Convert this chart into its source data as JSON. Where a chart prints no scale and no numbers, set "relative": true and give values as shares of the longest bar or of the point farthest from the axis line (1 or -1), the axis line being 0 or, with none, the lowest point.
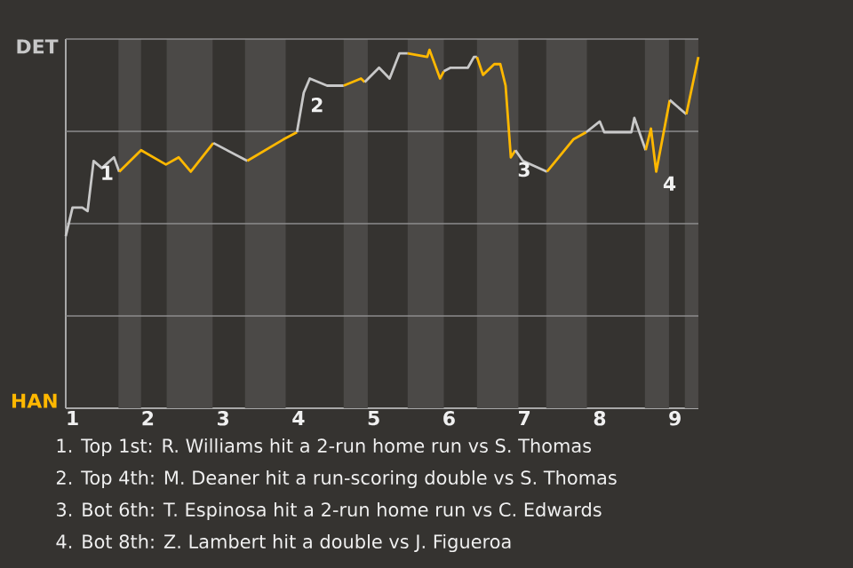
{
  "chart_data": {
    "type": "line",
    "relative": true,
    "xlim": [
      0.91,
      9.31
    ],
    "xticks": [
      {
        "value": 1,
        "label": "1"
      },
      {
        "value": 2,
        "label": "2"
      },
      {
        "value": 3,
        "label": "3"
      },
      {
        "value": 4,
        "label": "4"
      },
      {
        "value": 5,
        "label": "5"
      },
      {
        "value": 6,
        "label": "6"
      },
      {
        "value": 7,
        "label": "7"
      },
      {
        "value": 8,
        "label": "8"
      },
      {
        "value": 9,
        "label": "9"
      }
    ],
    "grid": "y",
    "marker": "none",
    "line_style": "solid",
    "bands": [
      {
        "axis": "x",
        "from": 1.61,
        "to": 1.91,
        "color": "#4b4947"
      },
      {
        "axis": "x",
        "from": 2.25,
        "to": 2.86,
        "color": "#4b4947"
      },
      {
        "axis": "x",
        "from": 3.29,
        "to": 3.83,
        "color": "#4b4947"
      },
      {
        "axis": "x",
        "from": 4.6,
        "to": 4.92,
        "color": "#4b4947"
      },
      {
        "axis": "x",
        "from": 5.45,
        "to": 5.93,
        "color": "#4b4947"
      },
      {
        "axis": "x",
        "from": 6.37,
        "to": 6.92,
        "color": "#4b4947"
      },
      {
        "axis": "x",
        "from": 7.29,
        "to": 7.83,
        "color": "#4b4947"
      },
      {
        "axis": "x",
        "from": 8.6,
        "to": 8.92,
        "color": "#4b4947"
      },
      {
        "axis": "x",
        "from": 9.13,
        "to": 9.31,
        "color": "#4b4947"
      }
    ],
    "series": [
      {
        "name": "DET",
        "color": "#c8c8c8",
        "x": [
          0.91,
          1.0,
          1.13,
          1.2,
          1.28,
          1.39,
          1.55,
          1.62
        ],
        "values": [
          0.48,
          0.56,
          0.56,
          0.55,
          0.69,
          0.67,
          0.7,
          0.66
        ]
      },
      {
        "name": "HAN",
        "color": "#ffb800",
        "x": [
          1.62,
          1.91,
          2.24,
          2.41,
          2.57,
          2.87
        ],
        "values": [
          0.66,
          0.72,
          0.68,
          0.7,
          0.66,
          0.74
        ]
      },
      {
        "color": "#c8c8c8",
        "x": [
          2.87,
          3.32
        ],
        "values": [
          0.74,
          0.69
        ]
      },
      {
        "color": "#ffb800",
        "x": [
          3.32,
          3.8,
          3.98
        ],
        "values": [
          0.69,
          0.75,
          0.77
        ]
      },
      {
        "color": "#c8c8c8",
        "x": [
          3.98,
          4.07,
          4.15,
          4.38,
          4.6
        ],
        "values": [
          0.77,
          0.88,
          0.92,
          0.9,
          0.9
        ]
      },
      {
        "color": "#ffb800",
        "x": [
          4.6,
          4.83,
          4.88
        ],
        "values": [
          0.9,
          0.92,
          0.91
        ]
      },
      {
        "color": "#c8c8c8",
        "x": [
          4.88,
          5.07,
          5.21,
          5.34,
          5.45
        ],
        "values": [
          0.91,
          0.95,
          0.92,
          0.99,
          0.99
        ]
      },
      {
        "color": "#ffb800",
        "x": [
          5.45,
          5.71,
          5.74,
          5.88,
          5.93
        ],
        "values": [
          0.99,
          0.98,
          1,
          0.92,
          0.94
        ]
      },
      {
        "color": "#c8c8c8",
        "x": [
          5.93,
          6.02,
          6.25,
          6.33,
          6.37
        ],
        "values": [
          0.94,
          0.95,
          0.95,
          0.98,
          0.98
        ]
      },
      {
        "color": "#ffb800",
        "x": [
          6.37,
          6.45,
          6.6,
          6.68,
          6.75,
          6.82,
          6.88
        ],
        "values": [
          0.98,
          0.93,
          0.96,
          0.96,
          0.9,
          0.7,
          0.72
        ]
      },
      {
        "color": "#c8c8c8",
        "x": [
          6.88,
          6.98,
          7.3
        ],
        "values": [
          0.72,
          0.69,
          0.66
        ]
      },
      {
        "color": "#ffb800",
        "x": [
          7.3,
          7.65,
          7.82
        ],
        "values": [
          0.66,
          0.75,
          0.77
        ]
      },
      {
        "color": "#c8c8c8",
        "x": [
          7.82,
          8.0,
          8.06,
          8.42,
          8.46,
          8.61
        ],
        "values": [
          0.77,
          0.8,
          0.77,
          0.77,
          0.81,
          0.72
        ]
      },
      {
        "color": "#ffb800",
        "x": [
          8.61,
          8.68,
          8.75,
          8.93
        ],
        "values": [
          0.72,
          0.78,
          0.66,
          0.86
        ]
      },
      {
        "color": "#c8c8c8",
        "x": [
          8.93,
          9.15
        ],
        "values": [
          0.86,
          0.82
        ]
      },
      {
        "color": "#ffb800",
        "x": [
          9.15,
          9.31
        ],
        "values": [
          0.82,
          0.98
        ]
      }
    ],
    "annotations": [
      {
        "text": "1",
        "x": 1.28,
        "y": 0.69
      },
      {
        "text": "2",
        "x": 4.07,
        "y": 0.88
      },
      {
        "text": "3",
        "x": 6.82,
        "y": 0.7
      },
      {
        "text": "4",
        "x": 8.75,
        "y": 0.66
      },
      "1. Top 1st: R. Williams hit a 2-run home run vs S. Thomas",
      "2. Top 4th: M. Deaner hit a run-scoring double vs S. Thomas",
      "3. Bot 6th: T. Espinosa hit a 2-run home run vs C. Edwards",
      "4. Bot 8th: Z. Lambert hit a double vs J. Figueroa"
    ]
  }
}
